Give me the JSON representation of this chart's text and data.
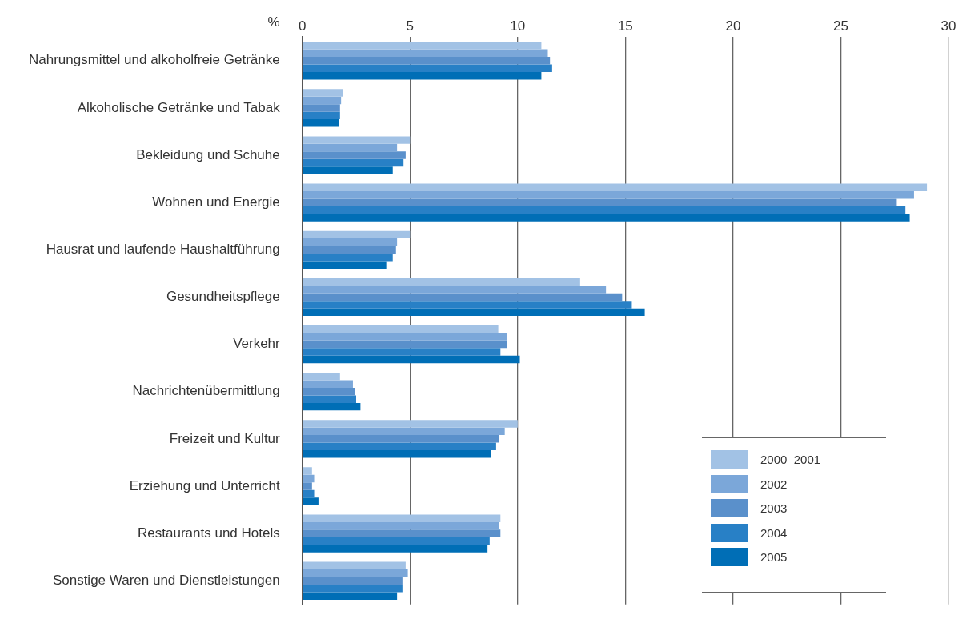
{
  "chart_data": {
    "type": "bar",
    "orientation": "horizontal",
    "xlabel": "%",
    "categories": [
      "Nahrungsmittel und alkoholfreie Getränke",
      "Alkoholische Getränke und Tabak",
      "Bekleidung und Schuhe",
      "Wohnen und Energie",
      "Hausrat und laufende Haushaltführung",
      "Gesundheitspflege",
      "Verkehr",
      "Nachrichtenübermittlung",
      "Freizeit und Kultur",
      "Erziehung und Unterricht",
      "Restaurants und Hotels",
      "Sonstige Waren und Dienstleistungen"
    ],
    "series": [
      {
        "name": "2000–2001",
        "color": "#a2c2e5",
        "values": [
          11.1,
          1.9,
          5.0,
          29.0,
          5.0,
          12.9,
          9.1,
          1.75,
          10.0,
          0.45,
          9.2,
          4.8
        ]
      },
      {
        "name": "2002",
        "color": "#7ba7d9",
        "values": [
          11.4,
          1.8,
          4.4,
          28.4,
          4.4,
          14.1,
          9.5,
          2.35,
          9.4,
          0.55,
          9.15,
          4.9
        ]
      },
      {
        "name": "2003",
        "color": "#5a90cb",
        "values": [
          11.5,
          1.75,
          4.8,
          27.6,
          4.35,
          14.85,
          9.5,
          2.45,
          9.15,
          0.45,
          9.2,
          4.65
        ]
      },
      {
        "name": "2004",
        "color": "#2880c6",
        "values": [
          11.6,
          1.75,
          4.7,
          28.0,
          4.2,
          15.3,
          9.2,
          2.5,
          9.0,
          0.55,
          8.7,
          4.65
        ]
      },
      {
        "name": "2005",
        "color": "#006eb6",
        "values": [
          11.1,
          1.7,
          4.2,
          28.2,
          3.9,
          15.9,
          10.1,
          2.7,
          8.75,
          0.75,
          8.6,
          4.4
        ]
      }
    ],
    "xlim": [
      0,
      30
    ],
    "xticks": [
      0,
      5,
      10,
      15,
      20,
      25,
      30
    ],
    "grid": "x",
    "legend": "bottom right"
  }
}
